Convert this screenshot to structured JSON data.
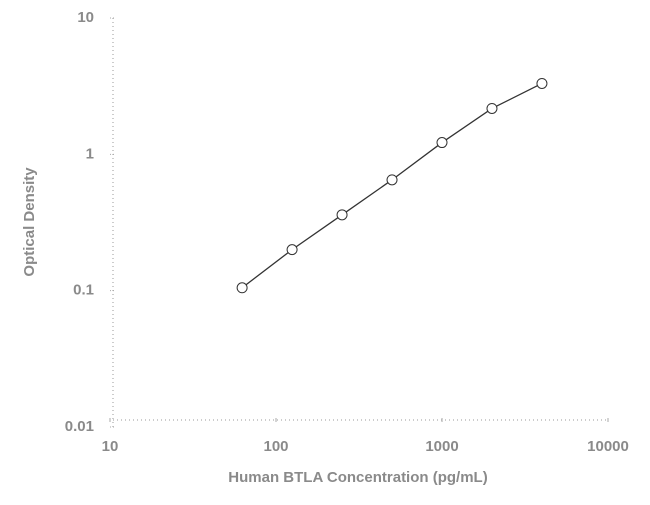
{
  "chart_data": {
    "type": "line",
    "x_label": "Human BTLA Concentration (pg/mL)",
    "y_label": "Optical Density",
    "x": [
      62.5,
      125,
      250,
      500,
      1000,
      2000,
      4000
    ],
    "values": [
      0.105,
      0.2,
      0.36,
      0.65,
      1.22,
      2.17,
      3.31
    ],
    "color": "#333333",
    "marker_fill": "#ffffff",
    "xscale": "log",
    "yscale": "log",
    "xlim": [
      10,
      10000
    ],
    "ylim": [
      0.01,
      10
    ],
    "xticks": [
      10,
      100,
      1000,
      10000
    ],
    "yticks": [
      0.01,
      0.1,
      1,
      10
    ]
  }
}
